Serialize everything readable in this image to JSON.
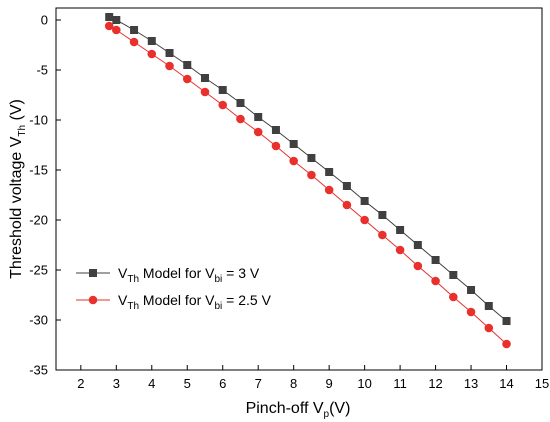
{
  "chart_data": {
    "type": "line",
    "title": "",
    "xlabel": {
      "main": "Pinch-off  V",
      "sub": "p",
      "unit": "(V)"
    },
    "ylabel": {
      "main": "Threshold voltage V",
      "sub": "Th",
      "unit": " (V)"
    },
    "xlim": [
      1.3,
      15
    ],
    "ylim": [
      -35,
      1.2
    ],
    "xticks": [
      2,
      3,
      4,
      5,
      6,
      7,
      8,
      9,
      10,
      11,
      12,
      13,
      14,
      15
    ],
    "yticks": [
      0,
      -5,
      -10,
      -15,
      -20,
      -25,
      -30,
      -35
    ],
    "grid": false,
    "legend_position": "bottom-left",
    "x": [
      2.8,
      3,
      3.5,
      4,
      4.5,
      5,
      5.5,
      6,
      6.5,
      7,
      7.5,
      8,
      8.5,
      9,
      9.5,
      10,
      10.5,
      11,
      11.5,
      12,
      12.5,
      13,
      13.5,
      14
    ],
    "series": [
      {
        "legend": {
          "pre": "V",
          "sub1": "Th",
          "mid": " Model for V",
          "sub2": "bi",
          "post": " = 3 V"
        },
        "color": "#404040",
        "marker": "square",
        "values": [
          0.3,
          0.0,
          -1.0,
          -2.1,
          -3.3,
          -4.5,
          -5.8,
          -7.0,
          -8.3,
          -9.7,
          -11.0,
          -12.4,
          -13.8,
          -15.2,
          -16.6,
          -18.1,
          -19.5,
          -21.0,
          -22.5,
          -24.0,
          -25.5,
          -27.0,
          -28.6,
          -30.1
        ]
      },
      {
        "legend": {
          "pre": "V",
          "sub1": "Th",
          "mid": " Model for V",
          "sub2": "bi",
          "post": " = 2.5 V"
        },
        "color": "#e8302c",
        "marker": "circle",
        "values": [
          -0.6,
          -1.0,
          -2.2,
          -3.4,
          -4.6,
          -5.9,
          -7.2,
          -8.5,
          -9.9,
          -11.2,
          -12.6,
          -14.1,
          -15.5,
          -17.0,
          -18.5,
          -20.0,
          -21.5,
          -23.0,
          -24.6,
          -26.1,
          -27.7,
          -29.2,
          -30.8,
          -32.4
        ]
      }
    ]
  }
}
